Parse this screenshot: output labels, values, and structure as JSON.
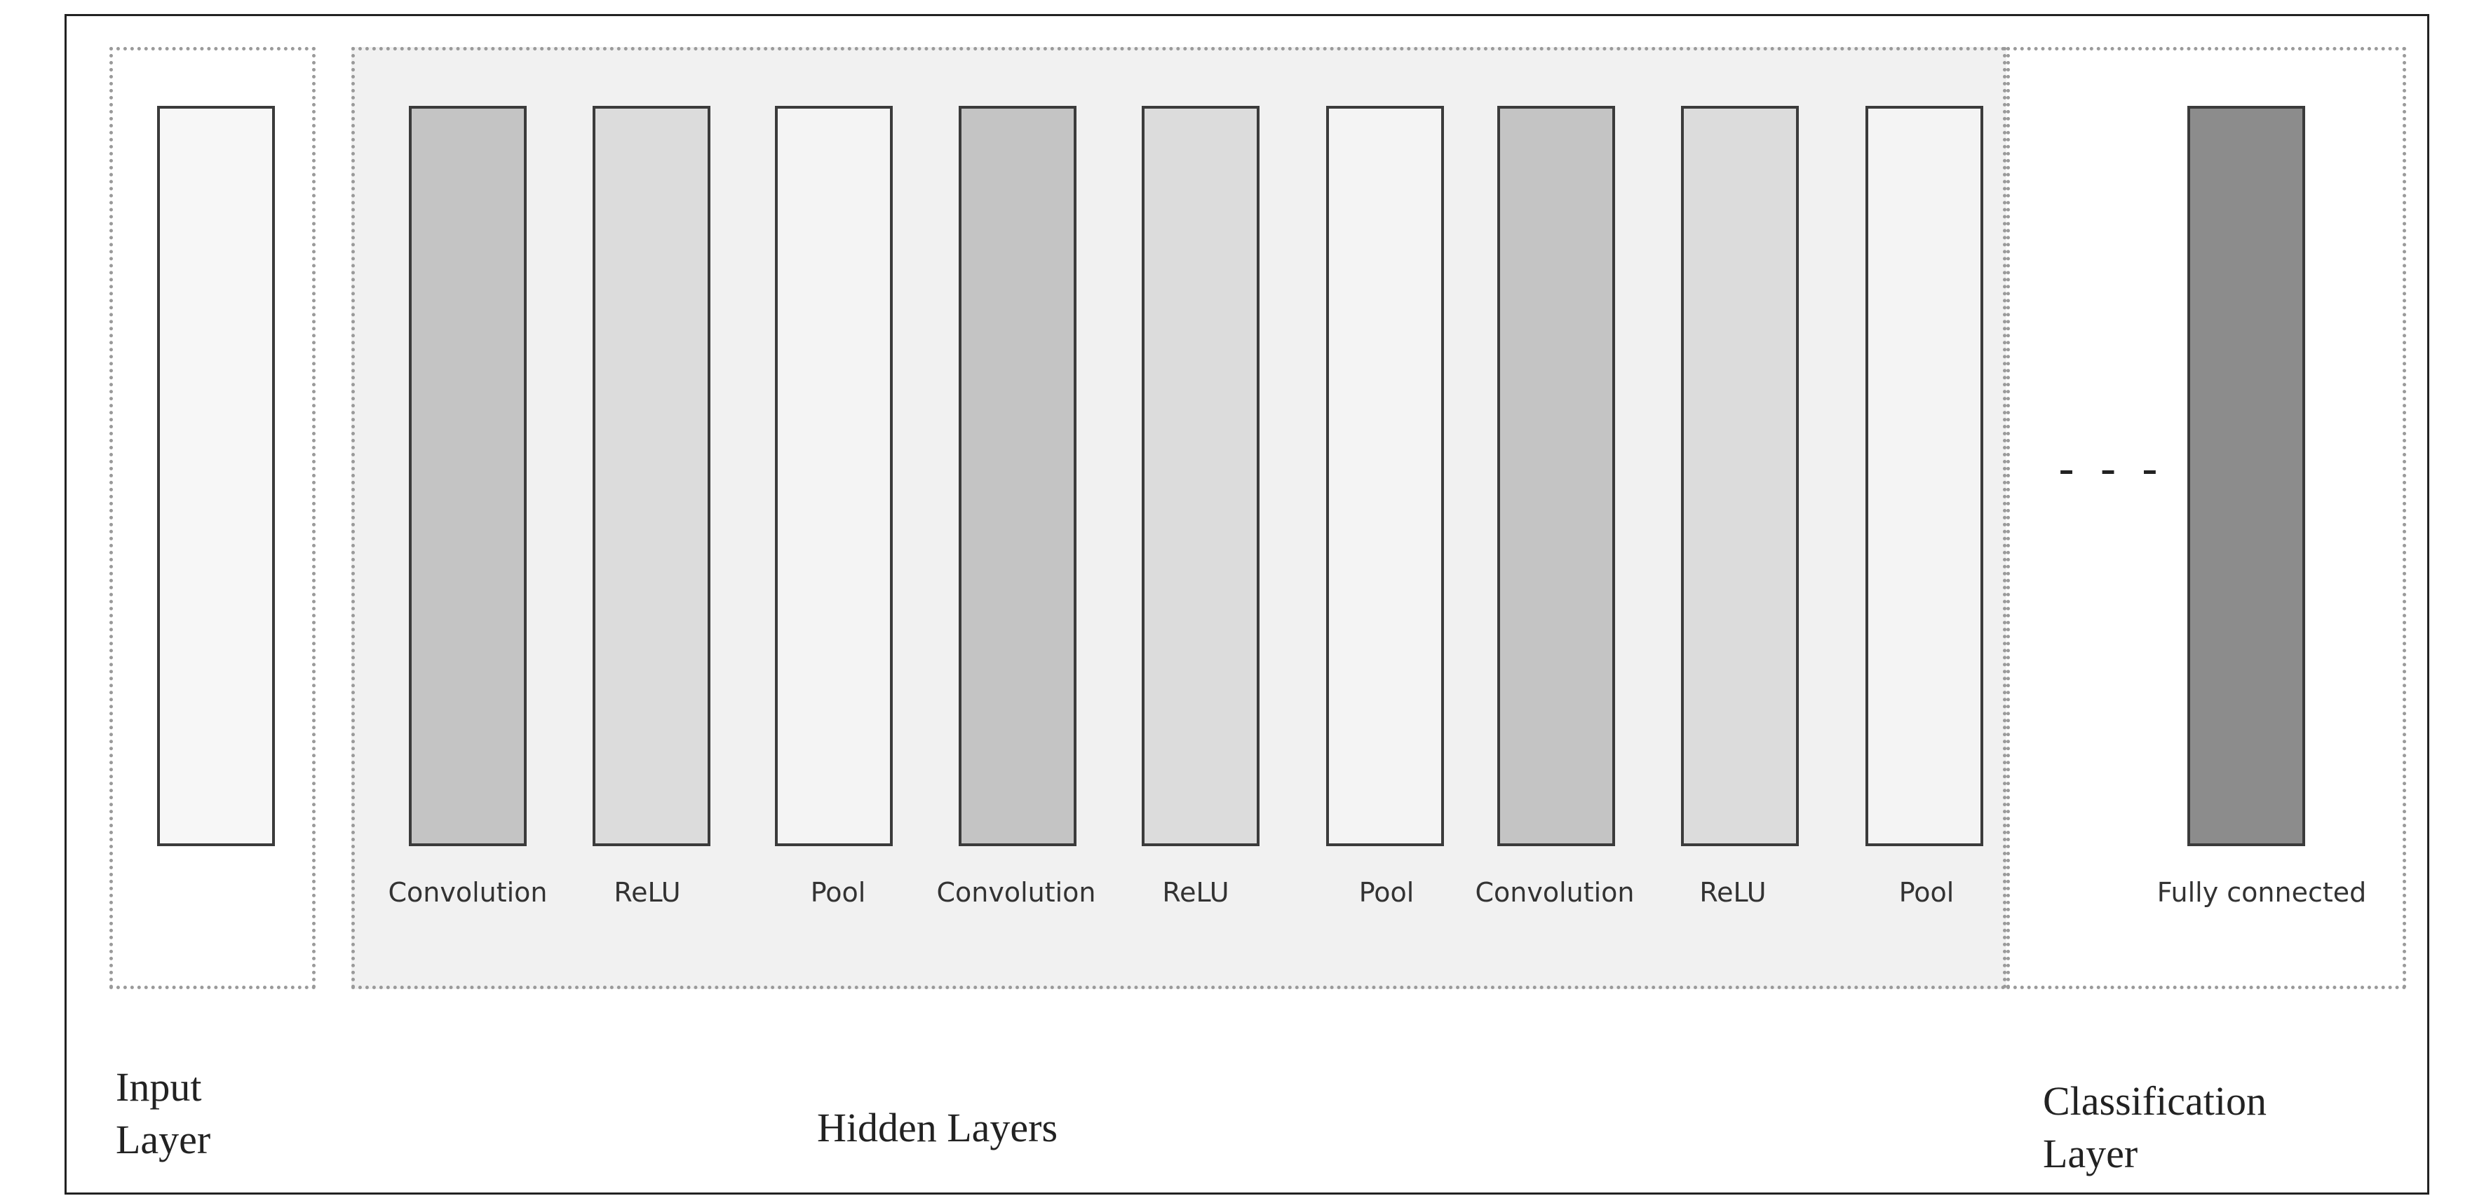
{
  "colors": {
    "conv": "#c4c4c4",
    "relu": "#dcdcdc",
    "pool": "#f4f4f4",
    "input": "#f7f7f7",
    "fc": "#8c8c8c"
  },
  "input_layer": {
    "label_line1": "Input",
    "label_line2": "Layer"
  },
  "hidden_layers": {
    "label": "Hidden Layers",
    "layers": [
      {
        "name": "Convolution",
        "kind": "conv"
      },
      {
        "name": "ReLU",
        "kind": "relu"
      },
      {
        "name": "Pool",
        "kind": "pool"
      },
      {
        "name": "Convolution",
        "kind": "conv"
      },
      {
        "name": "ReLU",
        "kind": "relu"
      },
      {
        "name": "Pool",
        "kind": "pool"
      },
      {
        "name": "Convolution",
        "kind": "conv"
      },
      {
        "name": "ReLU",
        "kind": "relu"
      },
      {
        "name": "Pool",
        "kind": "pool"
      }
    ]
  },
  "classification_layer": {
    "label_line1": "Classification",
    "label_line2": "Layer",
    "ellipsis": "- - -",
    "final_layer": "Fully connected"
  }
}
